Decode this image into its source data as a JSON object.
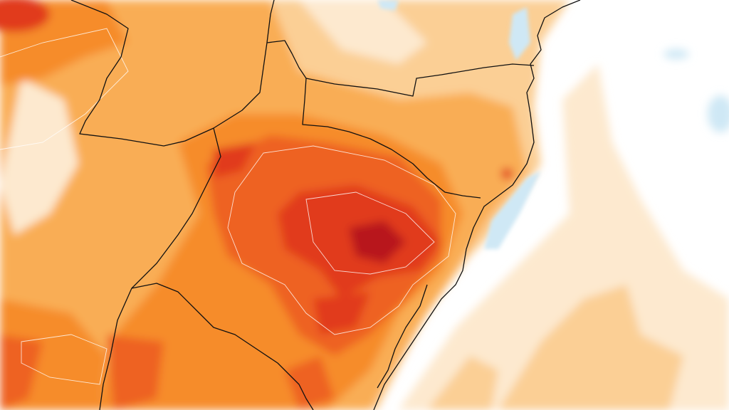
{
  "map": {
    "type": "temperature-anomaly-field",
    "colors": {
      "ocean": "#ffffff",
      "pale": "#fde9cf",
      "light": "#fbcf95",
      "mid": "#f9ad55",
      "orange": "#f68c2c",
      "deep": "#ee6220",
      "red": "#e13a1b",
      "darkred": "#b8141a",
      "cool": "#cfe8f5",
      "border": "#111111",
      "contour": "#ffffff"
    }
  }
}
